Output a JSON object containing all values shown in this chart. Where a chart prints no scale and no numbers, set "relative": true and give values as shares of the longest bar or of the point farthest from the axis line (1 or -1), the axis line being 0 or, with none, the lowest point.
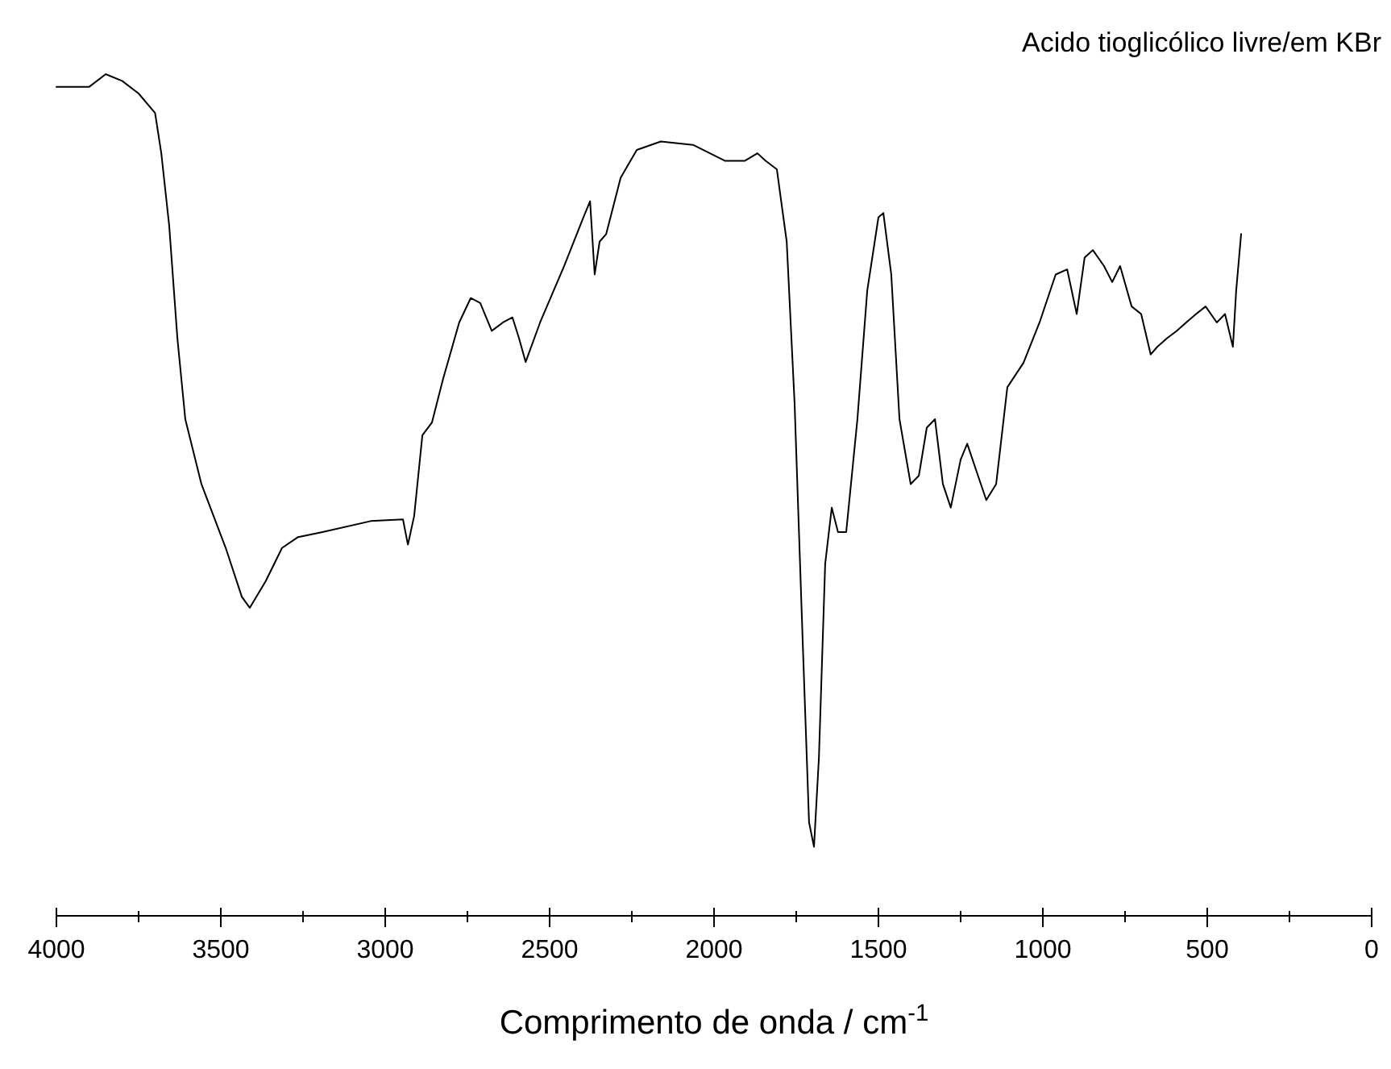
{
  "chart_data": {
    "type": "line",
    "title": "Acido tioglicólico livre/em KBr",
    "xlabel": "Comprimento de onda / cm$^{-1}$",
    "relative": true,
    "tick_labels": "x",
    "xlim": [
      4000,
      0
    ],
    "xticks": [
      4000,
      {
        "value": 3750,
        "label": null
      },
      3500,
      {
        "value": 3250,
        "label": null
      },
      3000,
      {
        "value": 2750,
        "label": null
      },
      2500,
      {
        "value": 2250,
        "label": null
      },
      2000,
      {
        "value": 1750,
        "label": null
      },
      1500,
      {
        "value": 1250,
        "label": null
      },
      1000,
      {
        "value": 750,
        "label": null
      },
      500,
      {
        "value": 250,
        "label": null
      },
      0
    ],
    "series": [
      {
        "color": "#000000",
        "x": [
          4000,
          3900,
          3850,
          3800,
          3750,
          3700,
          3681,
          3657,
          3632,
          3608,
          3559,
          3485,
          3436,
          3412,
          3363,
          3314,
          3265,
          3191,
          3044,
          2946,
          2931,
          2912,
          2887,
          2858,
          2824,
          2775,
          2740,
          2711,
          2676,
          2642,
          2613,
          2593,
          2573,
          2529,
          2456,
          2397,
          2377,
          2363,
          2348,
          2328,
          2284,
          2235,
          2162,
          2064,
          1966,
          1907,
          1868,
          1843,
          1809,
          1779,
          1755,
          1730,
          1711,
          1696,
          1681,
          1662,
          1642,
          1623,
          1598,
          1564,
          1534,
          1500,
          1485,
          1461,
          1436,
          1402,
          1377,
          1353,
          1328,
          1304,
          1280,
          1250,
          1230,
          1206,
          1172,
          1142,
          1108,
          1059,
          1010,
          961,
          926,
          897,
          873,
          848,
          814,
          789,
          765,
          730,
          701,
          672,
          652,
          623,
          593,
          564,
          534,
          505,
          471,
          446,
          422,
          412,
          397
        ],
        "values": [
          0.985,
          0.985,
          1,
          0.992,
          0.977,
          0.954,
          0.906,
          0.82,
          0.686,
          0.59,
          0.513,
          0.437,
          0.379,
          0.366,
          0.398,
          0.437,
          0.45,
          0.456,
          0.469,
          0.471,
          0.441,
          0.475,
          0.571,
          0.586,
          0.638,
          0.705,
          0.734,
          0.728,
          0.695,
          0.705,
          0.711,
          0.686,
          0.658,
          0.705,
          0.772,
          0.83,
          0.849,
          0.762,
          0.801,
          0.81,
          0.877,
          0.91,
          0.92,
          0.916,
          0.897,
          0.897,
          0.906,
          0.897,
          0.887,
          0.801,
          0.609,
          0.322,
          0.111,
          0.082,
          0.188,
          0.418,
          0.485,
          0.456,
          0.456,
          0.59,
          0.743,
          0.83,
          0.835,
          0.762,
          0.59,
          0.513,
          0.523,
          0.58,
          0.59,
          0.513,
          0.485,
          0.542,
          0.561,
          0.533,
          0.494,
          0.513,
          0.628,
          0.657,
          0.705,
          0.762,
          0.768,
          0.715,
          0.782,
          0.791,
          0.772,
          0.753,
          0.772,
          0.724,
          0.715,
          0.667,
          0.676,
          0.686,
          0.695,
          0.705,
          0.715,
          0.724,
          0.705,
          0.715,
          0.676,
          0.743,
          0.81
        ]
      }
    ]
  }
}
